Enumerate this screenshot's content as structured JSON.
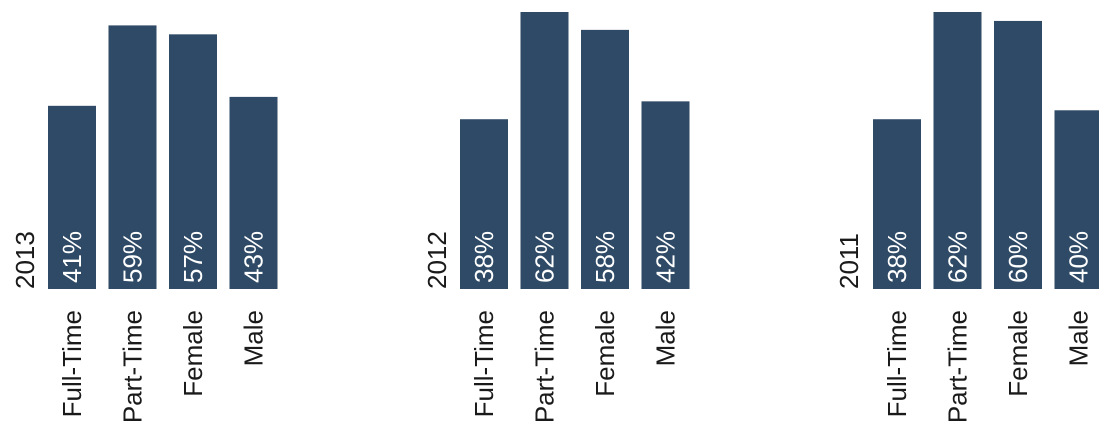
{
  "bar_color": "#2e4a66",
  "label_color": "#ffffff",
  "text_color": "#1a1a1a",
  "chart_data": [
    {
      "type": "bar",
      "title": "2013",
      "categories": [
        "Full-Time",
        "Part-Time",
        "Female",
        "Male"
      ],
      "values": [
        41,
        59,
        57,
        43
      ],
      "value_labels": [
        "41%",
        "59%",
        "57%",
        "43%"
      ],
      "ylim": [
        0,
        62
      ]
    },
    {
      "type": "bar",
      "title": "2012",
      "categories": [
        "Full-Time",
        "Part-Time",
        "Female",
        "Male"
      ],
      "values": [
        38,
        62,
        58,
        42
      ],
      "value_labels": [
        "38%",
        "62%",
        "58%",
        "42%"
      ],
      "ylim": [
        0,
        62
      ]
    },
    {
      "type": "bar",
      "title": "2011",
      "categories": [
        "Full-Time",
        "Part-Time",
        "Female",
        "Male"
      ],
      "values": [
        38,
        62,
        60,
        40
      ],
      "value_labels": [
        "38%",
        "62%",
        "60%",
        "40%"
      ],
      "ylim": [
        0,
        62
      ]
    }
  ]
}
